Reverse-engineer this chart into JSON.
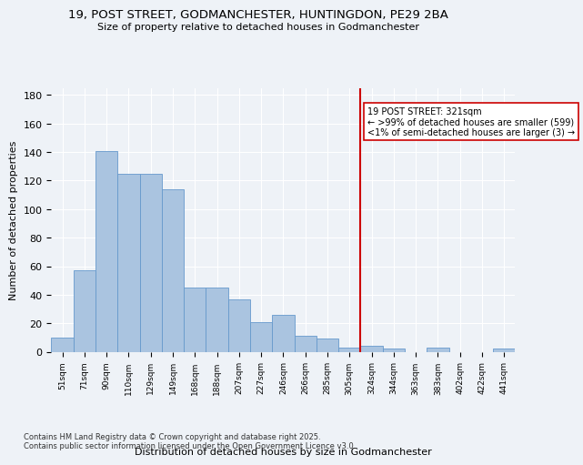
{
  "title_line1": "19, POST STREET, GODMANCHESTER, HUNTINGDON, PE29 2BA",
  "title_line2": "Size of property relative to detached houses in Godmanchester",
  "xlabel": "Distribution of detached houses by size in Godmanchester",
  "ylabel": "Number of detached properties",
  "categories": [
    "51sqm",
    "71sqm",
    "90sqm",
    "110sqm",
    "129sqm",
    "149sqm",
    "168sqm",
    "188sqm",
    "207sqm",
    "227sqm",
    "246sqm",
    "266sqm",
    "285sqm",
    "305sqm",
    "324sqm",
    "344sqm",
    "363sqm",
    "383sqm",
    "402sqm",
    "422sqm",
    "441sqm"
  ],
  "values": [
    10,
    57,
    141,
    125,
    125,
    114,
    45,
    45,
    37,
    21,
    26,
    11,
    9,
    3,
    4,
    2,
    0,
    3,
    0,
    0,
    2
  ],
  "bar_color": "#aac4e0",
  "bar_edge_color": "#6699cc",
  "highlight_idx": 14,
  "highlight_color": "#cc0000",
  "ylim_max": 185,
  "yticks": [
    0,
    20,
    40,
    60,
    80,
    100,
    120,
    140,
    160,
    180
  ],
  "annotation_title": "19 POST STREET: 321sqm",
  "annotation_line1": "← >99% of detached houses are smaller (599)",
  "annotation_line2": "<1% of semi-detached houses are larger (3) →",
  "footer1": "Contains HM Land Registry data © Crown copyright and database right 2025.",
  "footer2": "Contains public sector information licensed under the Open Government Licence v3.0.",
  "bg_color": "#eef2f7",
  "plot_bg_color": "#eef2f7"
}
